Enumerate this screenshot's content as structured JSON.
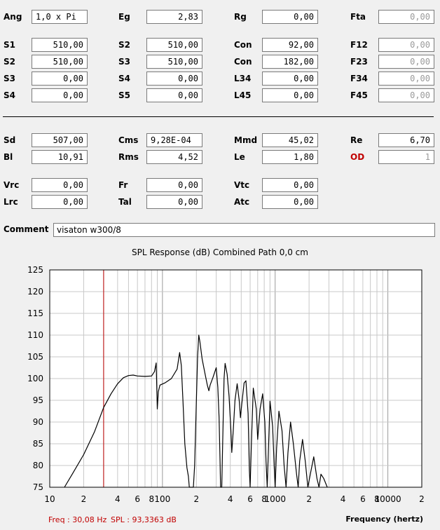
{
  "params": {
    "row_ang": [
      {
        "label": "Ang",
        "value": "1,0 x Pi",
        "style": "left"
      },
      {
        "label": "Eg",
        "value": "2,83"
      },
      {
        "label": "Rg",
        "value": "0,00"
      },
      {
        "label": "Fta",
        "value": "0,00",
        "style": "ro"
      }
    ],
    "row_s1": [
      {
        "label": "S1",
        "value": "510,00"
      },
      {
        "label": "S2",
        "value": "510,00"
      },
      {
        "label": "Con",
        "value": "92,00"
      },
      {
        "label": "F12",
        "value": "0,00",
        "style": "ro"
      }
    ],
    "row_s2": [
      {
        "label": "S2",
        "value": "510,00"
      },
      {
        "label": "S3",
        "value": "510,00"
      },
      {
        "label": "Con",
        "value": "182,00"
      },
      {
        "label": "F23",
        "value": "0,00",
        "style": "ro"
      }
    ],
    "row_s3": [
      {
        "label": "S3",
        "value": "0,00"
      },
      {
        "label": "S4",
        "value": "0,00"
      },
      {
        "label": "L34",
        "value": "0,00"
      },
      {
        "label": "F34",
        "value": "0,00",
        "style": "ro"
      }
    ],
    "row_s4": [
      {
        "label": "S4",
        "value": "0,00"
      },
      {
        "label": "S5",
        "value": "0,00"
      },
      {
        "label": "L45",
        "value": "0,00"
      },
      {
        "label": "F45",
        "value": "0,00",
        "style": "ro"
      }
    ],
    "row_sd": [
      {
        "label": "Sd",
        "value": "507,00"
      },
      {
        "label": "Cms",
        "value": "9,28E-04",
        "style": "left"
      },
      {
        "label": "Mmd",
        "value": "45,02"
      },
      {
        "label": "Re",
        "value": "6,70"
      }
    ],
    "row_bl": [
      {
        "label": "Bl",
        "value": "10,91"
      },
      {
        "label": "Rms",
        "value": "4,52"
      },
      {
        "label": "Le",
        "value": "1,80"
      },
      {
        "label": "OD",
        "value": "1",
        "style": "ro",
        "labelStyle": "red"
      }
    ],
    "row_vrc": [
      {
        "label": "Vrc",
        "value": "0,00"
      },
      {
        "label": "Fr",
        "value": "0,00"
      },
      {
        "label": "Vtc",
        "value": "0,00"
      }
    ],
    "row_lrc": [
      {
        "label": "Lrc",
        "value": "0,00"
      },
      {
        "label": "Tal",
        "value": "0,00"
      },
      {
        "label": "Atc",
        "value": "0,00"
      }
    ]
  },
  "comment": {
    "label": "Comment",
    "value": "visaton w300/8"
  },
  "chart_title": "SPL Response (dB)   Combined   Path 0,0 cm",
  "status": {
    "freq": "Freq : 30,08 Hz",
    "spl": "SPL : 93,3363 dB"
  },
  "colors": {
    "curve": "#000000",
    "cursor": "#c00000",
    "grid": "#c8c8c8",
    "status": "#c00000",
    "od_label": "#c00000"
  },
  "chart_data": {
    "type": "line",
    "title": "SPL Response (dB)   Combined   Path 0,0 cm",
    "xlabel": "Frequency (hertz)",
    "ylabel": "",
    "xscale": "log",
    "xlim": [
      10,
      20000
    ],
    "ylim": [
      75,
      125
    ],
    "y_ticks": [
      75,
      80,
      85,
      90,
      95,
      100,
      105,
      110,
      115,
      120,
      125
    ],
    "x_tick_labels": [
      {
        "f": 10,
        "t": "10"
      },
      {
        "f": 20,
        "t": "2"
      },
      {
        "f": 40,
        "t": "4"
      },
      {
        "f": 60,
        "t": "6"
      },
      {
        "f": 80,
        "t": "8"
      },
      {
        "f": 100,
        "t": "100"
      },
      {
        "f": 200,
        "t": "2"
      },
      {
        "f": 400,
        "t": "4"
      },
      {
        "f": 600,
        "t": "6"
      },
      {
        "f": 800,
        "t": "8"
      },
      {
        "f": 1000,
        "t": "1000"
      },
      {
        "f": 2000,
        "t": "2"
      },
      {
        "f": 4000,
        "t": "4"
      },
      {
        "f": 6000,
        "t": "6"
      },
      {
        "f": 8000,
        "t": "8"
      },
      {
        "f": 10000,
        "t": "10000"
      },
      {
        "f": 20000,
        "t": "2"
      }
    ],
    "grid": true,
    "cursor_freq": 30.08,
    "series": [
      {
        "values": [
          [
            13.5,
            75.0
          ],
          [
            16,
            78.2
          ],
          [
            20,
            82.5
          ],
          [
            25,
            87.8
          ],
          [
            30.08,
            93.34
          ],
          [
            35,
            96.5
          ],
          [
            40,
            98.8
          ],
          [
            45,
            100.2
          ],
          [
            50,
            100.7
          ],
          [
            55,
            100.8
          ],
          [
            60,
            100.6
          ],
          [
            70,
            100.5
          ],
          [
            80,
            100.6
          ],
          [
            85,
            101.6
          ],
          [
            88,
            103.6
          ],
          [
            89,
            98.5
          ],
          [
            90,
            93.0
          ],
          [
            92,
            97.0
          ],
          [
            95,
            98.5
          ],
          [
            105,
            99.0
          ],
          [
            120,
            100.0
          ],
          [
            135,
            102.2
          ],
          [
            142,
            106.0
          ],
          [
            147,
            103.0
          ],
          [
            152,
            95.0
          ],
          [
            158,
            85.0
          ],
          [
            165,
            79.5
          ],
          [
            170,
            77.5
          ],
          [
            173,
            75.0
          ],
          [
            188,
            75.0
          ],
          [
            193,
            80.0
          ],
          [
            200,
            95.0
          ],
          [
            205,
            105.0
          ],
          [
            210,
            110.0
          ],
          [
            215,
            108.5
          ],
          [
            225,
            104.5
          ],
          [
            240,
            100.8
          ],
          [
            250,
            98.5
          ],
          [
            258,
            97.2
          ],
          [
            265,
            98.5
          ],
          [
            280,
            100.2
          ],
          [
            300,
            102.5
          ],
          [
            310,
            98.0
          ],
          [
            318,
            91.0
          ],
          [
            325,
            80.0
          ],
          [
            328,
            75.0
          ],
          [
            336,
            75.0
          ],
          [
            342,
            85.0
          ],
          [
            352,
            100.0
          ],
          [
            360,
            103.5
          ],
          [
            375,
            101.0
          ],
          [
            390,
            96.0
          ],
          [
            405,
            88.0
          ],
          [
            412,
            83.0
          ],
          [
            425,
            88.0
          ],
          [
            440,
            95.0
          ],
          [
            460,
            98.8
          ],
          [
            480,
            95.0
          ],
          [
            492,
            91.0
          ],
          [
            505,
            94.0
          ],
          [
            530,
            99.0
          ],
          [
            550,
            99.5
          ],
          [
            575,
            92.0
          ],
          [
            590,
            79.0
          ],
          [
            600,
            75.0
          ],
          [
            615,
            85.0
          ],
          [
            640,
            97.8
          ],
          [
            680,
            93.0
          ],
          [
            700,
            86.0
          ],
          [
            735,
            93.0
          ],
          [
            775,
            96.5
          ],
          [
            810,
            90.0
          ],
          [
            830,
            81.0
          ],
          [
            850,
            75.0
          ],
          [
            870,
            83.0
          ],
          [
            900,
            94.8
          ],
          [
            950,
            89.0
          ],
          [
            980,
            80.0
          ],
          [
            1000,
            75.0
          ],
          [
            1030,
            84.0
          ],
          [
            1080,
            92.5
          ],
          [
            1150,
            88.0
          ],
          [
            1200,
            80.0
          ],
          [
            1250,
            75.0
          ],
          [
            1300,
            83.0
          ],
          [
            1370,
            90.0
          ],
          [
            1450,
            85.0
          ],
          [
            1550,
            78.0
          ],
          [
            1600,
            75.0
          ],
          [
            1650,
            81.0
          ],
          [
            1750,
            86.0
          ],
          [
            1850,
            81.0
          ],
          [
            1950,
            75.0
          ],
          [
            2050,
            78.0
          ],
          [
            2200,
            82.0
          ],
          [
            2350,
            77.0
          ],
          [
            2450,
            75.0
          ],
          [
            2550,
            78.0
          ],
          [
            2700,
            77.0
          ],
          [
            2900,
            75.0
          ]
        ]
      }
    ]
  }
}
